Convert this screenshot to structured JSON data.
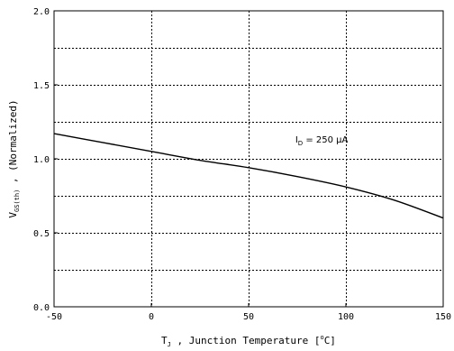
{
  "chart_data": {
    "type": "line",
    "title": "",
    "xlabel": {
      "main": "T",
      "sub": "J",
      "rest": " , Junction Temperature  [",
      "unit_sup": "o",
      "unit_end": "C]"
    },
    "ylabel": {
      "main": "V",
      "sub": "GS(th)",
      "rest": "  ,  (Normalized)"
    },
    "xlim": [
      -50,
      150
    ],
    "ylim": [
      0.0,
      2.0
    ],
    "x_ticks": [
      -50,
      0,
      50,
      100,
      150
    ],
    "x_tick_labels": [
      "-50",
      "0",
      "50",
      "100",
      "150"
    ],
    "y_ticks": [
      0.0,
      0.5,
      1.0,
      1.5,
      2.0
    ],
    "y_tick_labels": [
      "0.0",
      "0.5",
      "1.0",
      "1.5",
      "2.0"
    ],
    "grid": true,
    "x_grid": [
      0,
      50,
      100
    ],
    "y_grid": [
      0.25,
      0.5,
      0.75,
      1.0,
      1.25,
      1.5,
      1.75
    ],
    "series": [
      {
        "name": "",
        "x": [
          -50,
          -25,
          0,
          25,
          50,
          75,
          100,
          125,
          150
        ],
        "y": [
          1.17,
          1.11,
          1.05,
          0.99,
          0.94,
          0.88,
          0.81,
          0.72,
          0.6
        ],
        "color": "#000000"
      }
    ],
    "annotation": {
      "main": "I",
      "sub": "D",
      "rest": " = 250 µA",
      "x": 74,
      "y": 1.11
    }
  }
}
